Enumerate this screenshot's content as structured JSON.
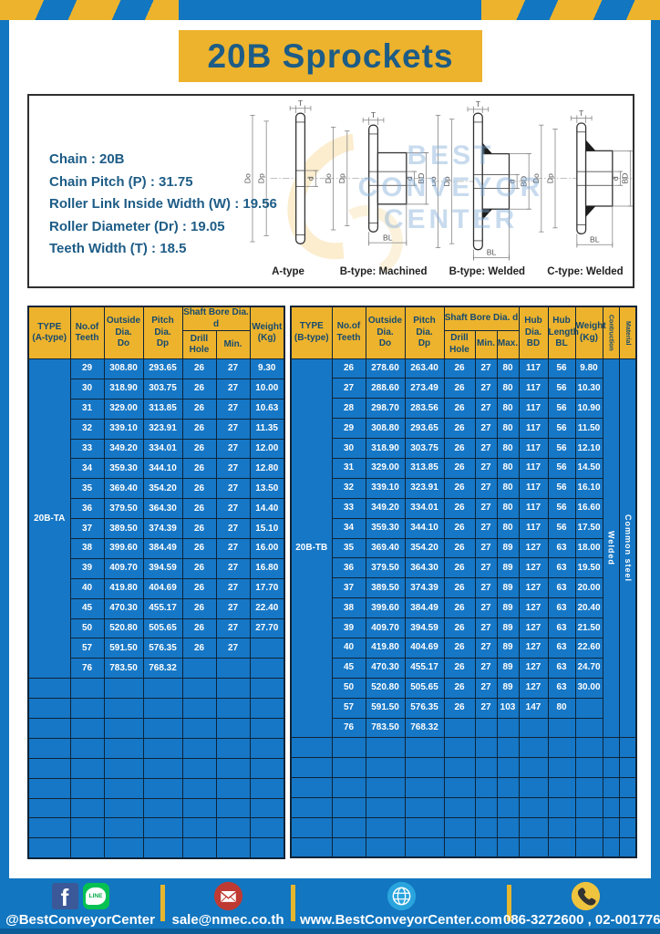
{
  "title": "20B Sprockets",
  "colors": {
    "frame_blue": "#1276c0",
    "accent_yellow": "#edb32d",
    "table_blue": "#1677c6",
    "navy_text": "#1d5c86",
    "border_dark": "#0e2438"
  },
  "specs": {
    "lines": [
      "Chain : 20B",
      "Chain Pitch (P) : 31.75",
      "Roller Link Inside Width (W) : 19.56",
      "Roller Diameter (Dr) : 19.05",
      "Teeth Width (T) : 18.5"
    ],
    "diagram_captions": [
      "A-type",
      "B-type: Machined",
      "B-type: Welded",
      "C-type: Welded"
    ],
    "dims": {
      "t": "T",
      "dia_o": "Do",
      "dia_p": "Dp",
      "d": "d",
      "bd": "BD",
      "bl": "BL"
    }
  },
  "watermark": [
    "BEST",
    "CONVEYOR",
    "CENTER"
  ],
  "table_a": {
    "headers": {
      "type": "TYPE\n(A-type)",
      "teeth": "No.of\nTeeth",
      "outside": "Outside\nDia.\nDo",
      "pitch": "Pitch Dia.\nDp",
      "shaft_bore": "Shaft Bore Dia. d",
      "drill": "Drill Hole",
      "min": "Min.",
      "weight": "Weight\n(Kg)"
    },
    "type_label": "20B-TA",
    "empty_rows": 9,
    "rows": [
      [
        "29",
        "308.80",
        "293.65",
        "26",
        "27",
        "9.30"
      ],
      [
        "30",
        "318.90",
        "303.75",
        "26",
        "27",
        "10.00"
      ],
      [
        "31",
        "329.00",
        "313.85",
        "26",
        "27",
        "10.63"
      ],
      [
        "32",
        "339.10",
        "323.91",
        "26",
        "27",
        "11.35"
      ],
      [
        "33",
        "349.20",
        "334.01",
        "26",
        "27",
        "12.00"
      ],
      [
        "34",
        "359.30",
        "344.10",
        "26",
        "27",
        "12.80"
      ],
      [
        "35",
        "369.40",
        "354.20",
        "26",
        "27",
        "13.50"
      ],
      [
        "36",
        "379.50",
        "364.30",
        "26",
        "27",
        "14.40"
      ],
      [
        "37",
        "389.50",
        "374.39",
        "26",
        "27",
        "15.10"
      ],
      [
        "38",
        "399.60",
        "384.49",
        "26",
        "27",
        "16.00"
      ],
      [
        "39",
        "409.70",
        "394.59",
        "26",
        "27",
        "16.80"
      ],
      [
        "40",
        "419.80",
        "404.69",
        "26",
        "27",
        "17.70"
      ],
      [
        "45",
        "470.30",
        "455.17",
        "26",
        "27",
        "22.40"
      ],
      [
        "50",
        "520.80",
        "505.65",
        "26",
        "27",
        "27.70"
      ],
      [
        "57",
        "591.50",
        "576.35",
        "26",
        "27",
        ""
      ],
      [
        "76",
        "783.50",
        "768.32",
        "",
        "",
        ""
      ]
    ]
  },
  "table_b": {
    "headers": {
      "type": "TYPE\n(B-type)",
      "teeth": "No.of\nTeeth",
      "outside": "Outside\nDia.\nDo",
      "pitch": "Pitch Dia.\nDp",
      "shaft_bore": "Shaft Bore Dia. d",
      "drill": "Drill Hole",
      "min": "Min.",
      "max": "Max.",
      "hub_dia": "Hub Dia.\nBD",
      "hub_len": "Hub\nLength\nBL",
      "weight": "Weight\n(Kg)",
      "construction": "Contruction",
      "material": "Material"
    },
    "type_label": "20B-TB",
    "construction_value": "Welded",
    "material_value": "Common  steel",
    "empty_rows": 6,
    "rows": [
      [
        "26",
        "278.60",
        "263.40",
        "26",
        "27",
        "80",
        "117",
        "56",
        "9.80"
      ],
      [
        "27",
        "288.60",
        "273.49",
        "26",
        "27",
        "80",
        "117",
        "56",
        "10.30"
      ],
      [
        "28",
        "298.70",
        "283.56",
        "26",
        "27",
        "80",
        "117",
        "56",
        "10.90"
      ],
      [
        "29",
        "308.80",
        "293.65",
        "26",
        "27",
        "80",
        "117",
        "56",
        "11.50"
      ],
      [
        "30",
        "318.90",
        "303.75",
        "26",
        "27",
        "80",
        "117",
        "56",
        "12.10"
      ],
      [
        "31",
        "329.00",
        "313.85",
        "26",
        "27",
        "80",
        "117",
        "56",
        "14.50"
      ],
      [
        "32",
        "339.10",
        "323.91",
        "26",
        "27",
        "80",
        "117",
        "56",
        "16.10"
      ],
      [
        "33",
        "349.20",
        "334.01",
        "26",
        "27",
        "80",
        "117",
        "56",
        "16.60"
      ],
      [
        "34",
        "359.30",
        "344.10",
        "26",
        "27",
        "80",
        "117",
        "56",
        "17.50"
      ],
      [
        "35",
        "369.40",
        "354.20",
        "26",
        "27",
        "89",
        "127",
        "63",
        "18.00"
      ],
      [
        "36",
        "379.50",
        "364.30",
        "26",
        "27",
        "89",
        "127",
        "63",
        "19.50"
      ],
      [
        "37",
        "389.50",
        "374.39",
        "26",
        "27",
        "89",
        "127",
        "63",
        "20.00"
      ],
      [
        "38",
        "399.60",
        "384.49",
        "26",
        "27",
        "89",
        "127",
        "63",
        "20.40"
      ],
      [
        "39",
        "409.70",
        "394.59",
        "26",
        "27",
        "89",
        "127",
        "63",
        "21.50"
      ],
      [
        "40",
        "419.80",
        "404.69",
        "26",
        "27",
        "89",
        "127",
        "63",
        "22.60"
      ],
      [
        "45",
        "470.30",
        "455.17",
        "26",
        "27",
        "89",
        "127",
        "63",
        "24.70"
      ],
      [
        "50",
        "520.80",
        "505.65",
        "26",
        "27",
        "89",
        "127",
        "63",
        "30.00"
      ],
      [
        "57",
        "591.50",
        "576.35",
        "26",
        "27",
        "103",
        "147",
        "80",
        ""
      ],
      [
        "76",
        "783.50",
        "768.32",
        "",
        "",
        "",
        "",
        "",
        ""
      ]
    ]
  },
  "footer": {
    "social": "@BestConveyorCenter",
    "email": "sale@nmec.co.th",
    "website": "www.BestConveyorCenter.com",
    "phone": "086-3272600 , 02-0017766",
    "line_badge": "LINE",
    "facebook_letter": "f"
  }
}
